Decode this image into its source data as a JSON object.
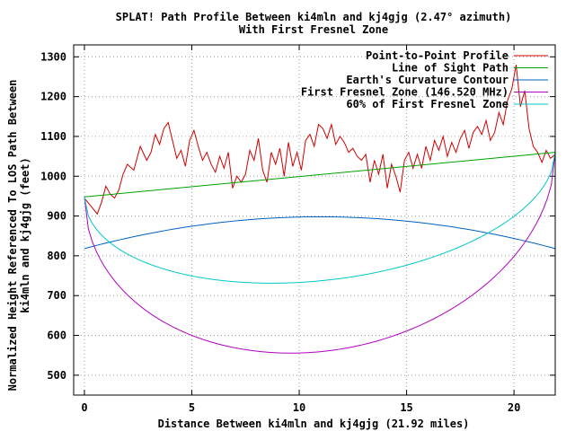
{
  "chart_data": {
    "type": "line",
    "title": "SPLAT! Path Profile Between ki4mln and kj4gjg (2.47° azimuth)",
    "subtitle": "With First Fresnel Zone",
    "xlabel": "Distance Between ki4mln and kj4gjg (21.92 miles)",
    "ylabel_line1": "Normalized Height Referenced To LOS Path Between",
    "ylabel_line2": "ki4mln and kj4gjg (feet)",
    "xlim": [
      -0.5,
      21.92
    ],
    "ylim": [
      450,
      1330
    ],
    "x_ticks": [
      0,
      5,
      10,
      15,
      20
    ],
    "y_ticks": [
      500,
      600,
      700,
      800,
      900,
      1000,
      1100,
      1200,
      1300
    ],
    "grid": true,
    "legend_position": "top-right",
    "series": [
      {
        "name": "Point-to-Point Profile",
        "color": "#d00000",
        "x": [
          0,
          0.3,
          0.6,
          0.8,
          1.0,
          1.2,
          1.4,
          1.6,
          1.8,
          2.0,
          2.3,
          2.6,
          2.9,
          3.1,
          3.3,
          3.5,
          3.7,
          3.9,
          4.1,
          4.3,
          4.5,
          4.7,
          4.9,
          5.1,
          5.3,
          5.5,
          5.7,
          5.9,
          6.1,
          6.3,
          6.5,
          6.7,
          6.9,
          7.1,
          7.3,
          7.5,
          7.7,
          7.9,
          8.1,
          8.3,
          8.5,
          8.7,
          8.9,
          9.1,
          9.3,
          9.5,
          9.7,
          9.9,
          10.1,
          10.3,
          10.5,
          10.7,
          10.9,
          11.1,
          11.3,
          11.5,
          11.7,
          11.9,
          12.1,
          12.3,
          12.5,
          12.7,
          12.9,
          13.1,
          13.3,
          13.5,
          13.7,
          13.9,
          14.1,
          14.3,
          14.5,
          14.7,
          14.9,
          15.1,
          15.3,
          15.5,
          15.7,
          15.9,
          16.1,
          16.3,
          16.5,
          16.7,
          16.9,
          17.1,
          17.3,
          17.5,
          17.7,
          17.9,
          18.1,
          18.3,
          18.5,
          18.7,
          18.9,
          19.1,
          19.3,
          19.5,
          19.7,
          19.9,
          20.1,
          20.3,
          20.5,
          20.7,
          20.9,
          21.1,
          21.3,
          21.5,
          21.7,
          21.92
        ],
        "values": [
          945,
          925,
          905,
          935,
          975,
          955,
          945,
          965,
          1005,
          1030,
          1015,
          1075,
          1040,
          1060,
          1105,
          1080,
          1120,
          1135,
          1090,
          1045,
          1065,
          1025,
          1090,
          1115,
          1075,
          1040,
          1060,
          1030,
          1010,
          1050,
          1020,
          1060,
          970,
          1000,
          985,
          1005,
          1065,
          1040,
          1095,
          1015,
          985,
          1060,
          1030,
          1070,
          1000,
          1085,
          1025,
          1060,
          1015,
          1090,
          1105,
          1075,
          1130,
          1120,
          1095,
          1130,
          1080,
          1100,
          1085,
          1060,
          1070,
          1050,
          1040,
          1055,
          985,
          1040,
          1005,
          1055,
          970,
          1030,
          1000,
          960,
          1040,
          1060,
          1020,
          1055,
          1020,
          1075,
          1040,
          1090,
          1065,
          1100,
          1050,
          1085,
          1060,
          1095,
          1115,
          1070,
          1110,
          1125,
          1105,
          1140,
          1090,
          1110,
          1160,
          1130,
          1190,
          1220,
          1280,
          1175,
          1215,
          1120,
          1075,
          1060,
          1035,
          1065,
          1045,
          1055
        ]
      },
      {
        "name": "Line of Sight Path",
        "color": "#00a000",
        "x": [
          0,
          21.92
        ],
        "values": [
          948,
          1060
        ]
      },
      {
        "name": "Earth's Curvature Contour",
        "color": "#0060c0",
        "shape": "arc",
        "x_ends": [
          0,
          21.92
        ],
        "values_ends": [
          818,
          818
        ],
        "peak": 898
      },
      {
        "name": "First Fresnel Zone (146.520 MHz)",
        "color": "#b000c0",
        "shape": "fresnel",
        "x_ends": [
          0,
          21.92
        ],
        "values_ends": [
          948,
          1060
        ],
        "depth": 445
      },
      {
        "name": "60% of First Fresnel Zone",
        "color": "#00c8c8",
        "shape": "fresnel",
        "x_ends": [
          0,
          21.92
        ],
        "values_ends": [
          948,
          1060
        ],
        "depth": 267
      }
    ]
  }
}
